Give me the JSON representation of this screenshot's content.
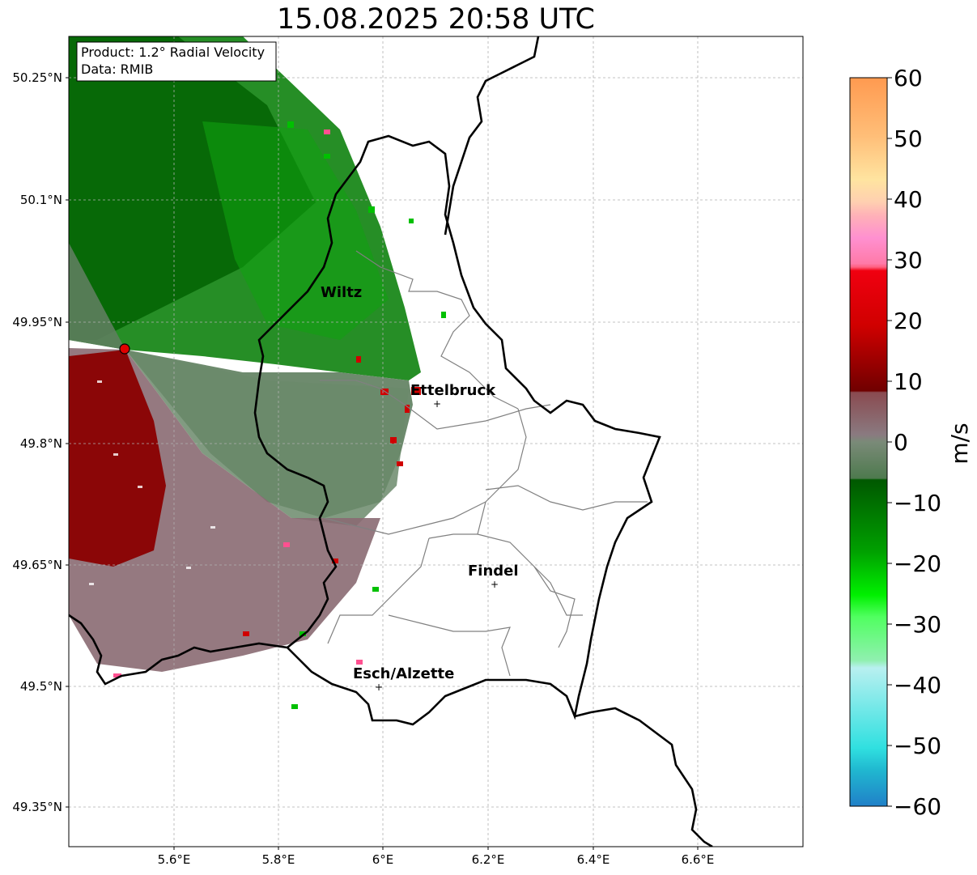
{
  "title": "15.08.2025 20:58 UTC",
  "info_box": {
    "line1": "Product: 1.2° Radial Velocity",
    "line2": "Data: RMIB"
  },
  "axes": {
    "lon_ticks": [
      "5.6°E",
      "5.8°E",
      "6°E",
      "6.2°E",
      "6.4°E",
      "6.6°E"
    ],
    "lat_ticks": [
      "50.25°N",
      "50.1°N",
      "49.95°N",
      "49.8°N",
      "49.65°N",
      "49.5°N",
      "49.35°N"
    ],
    "lon_range": [
      5.4,
      6.8
    ],
    "lat_range": [
      49.3,
      50.3
    ]
  },
  "colorbar": {
    "label": "m/s",
    "ticks": [
      "60",
      "50",
      "40",
      "30",
      "20",
      "10",
      "0",
      "−10",
      "−20",
      "−30",
      "−40",
      "−50",
      "−60"
    ],
    "range": [
      -60,
      60
    ],
    "colors": {
      "orange": "#ffa050",
      "light_orange": "#ffc880",
      "pale": "#ffe6a8",
      "pink": "#ff90c8",
      "red_pink": "#ff5070",
      "red": "#f00010",
      "dark_red": "#8a0000",
      "brown_grey": "#8a6a72",
      "grey_green": "#6b8a6b",
      "dark_green": "#006400",
      "green": "#00c800",
      "bright_green": "#40ff40",
      "pale_cyan": "#b8f0f0",
      "cyan": "#30e0e0",
      "blue": "#2080c8"
    }
  },
  "cities": [
    {
      "name": "Wiltz",
      "lon": 5.93,
      "lat": 49.97
    },
    {
      "name": "Ettelbruck",
      "lon": 6.1,
      "lat": 49.85
    },
    {
      "name": "Findel",
      "lon": 6.21,
      "lat": 49.63
    },
    {
      "name": "Esch/Alzette",
      "lon": 5.99,
      "lat": 49.5
    }
  ],
  "radar_site": {
    "lon": 5.505,
    "lat": 49.915
  }
}
